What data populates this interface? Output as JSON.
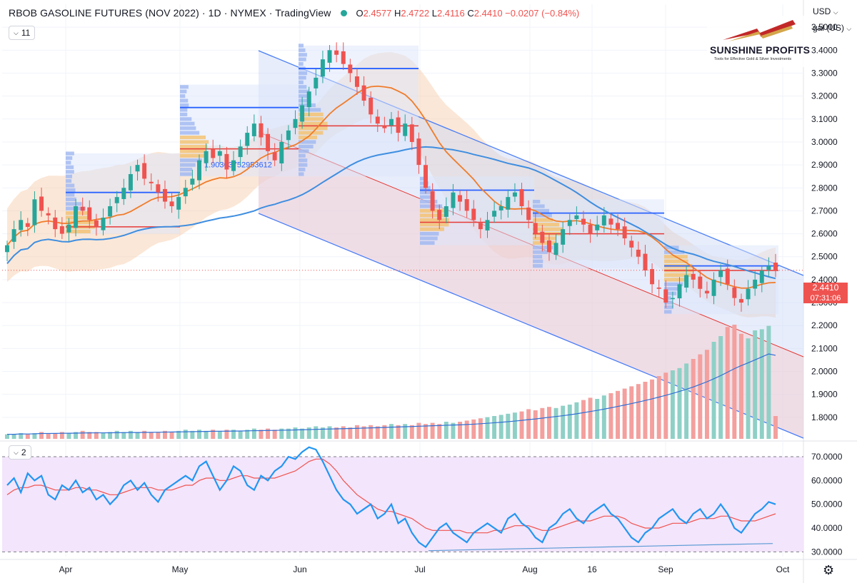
{
  "header": {
    "title": "RBOB GASOLINE FUTURES (NOV 2022) · 1D · NYMEX · TradingView",
    "ohlc": {
      "o_label": "O",
      "o": "2.4577",
      "h_label": "H",
      "h": "2.4722",
      "l_label": "L",
      "l": "2.4116",
      "c_label": "C",
      "c": "2.4410",
      "change": "−0.0207 (−0.84%)"
    }
  },
  "indicator_pills": {
    "main_count": "11",
    "sub_count": "2"
  },
  "axis_controls": {
    "currency": "USD",
    "unit": "gal (US)"
  },
  "logo": {
    "brand": "SUNSHINE PROFITS",
    "tagline": "Tools for Effective Gold & Silver Investments"
  },
  "last_price": {
    "value": "2.4410",
    "countdown": "07:31:06"
  },
  "watermark_level": "1.90303752953612",
  "colors": {
    "up": "#26a69a",
    "down": "#ef5350",
    "channel": "#4a7ef5",
    "ma_fast": "#f07c2a",
    "ma_slow": "#3f8ee0",
    "rsi": "#2196f3",
    "rsi_ma": "#ef5350",
    "rsi_bg": "#f3e5fb",
    "poc": "#e53935",
    "vah": "#2962ff"
  },
  "chart_data": {
    "type": "candlestick",
    "title": "RBOB GASOLINE FUTURES (NOV 2022)",
    "price_axis": {
      "min": 1.7,
      "max": 3.6,
      "ticks": [
        "1.8000",
        "1.9000",
        "2.0000",
        "2.1000",
        "2.2000",
        "2.3000",
        "2.4000",
        "2.5000",
        "2.6000",
        "2.7000",
        "2.8000",
        "2.9000",
        "3.0000",
        "3.1000",
        "3.2000",
        "3.3000",
        "3.4000",
        "3.5000"
      ]
    },
    "time_axis": {
      "labels": [
        "Apr",
        "May",
        "Jun",
        "Jul",
        "Aug",
        "16",
        "Sep",
        "Oct"
      ]
    },
    "series_close": [
      2.55,
      2.62,
      2.66,
      2.63,
      2.75,
      2.7,
      2.68,
      2.62,
      2.6,
      2.64,
      2.72,
      2.7,
      2.66,
      2.63,
      2.67,
      2.72,
      2.76,
      2.8,
      2.86,
      2.9,
      2.84,
      2.82,
      2.78,
      2.74,
      2.72,
      2.76,
      2.8,
      2.84,
      2.92,
      2.96,
      2.93,
      2.96,
      2.88,
      2.92,
      2.98,
      3.04,
      3.08,
      3.02,
      2.96,
      2.92,
      3.0,
      3.05,
      3.1,
      3.16,
      3.22,
      3.28,
      3.36,
      3.4,
      3.38,
      3.34,
      3.3,
      3.24,
      3.18,
      3.12,
      3.08,
      3.06,
      3.1,
      3.04,
      3.08,
      3.0,
      2.9,
      2.8,
      2.7,
      2.66,
      2.72,
      2.78,
      2.74,
      2.7,
      2.66,
      2.62,
      2.66,
      2.7,
      2.72,
      2.76,
      2.78,
      2.72,
      2.66,
      2.6,
      2.56,
      2.52,
      2.56,
      2.62,
      2.66,
      2.68,
      2.64,
      2.6,
      2.64,
      2.68,
      2.64,
      2.62,
      2.58,
      2.54,
      2.5,
      2.44,
      2.38,
      2.36,
      2.3,
      2.32,
      2.38,
      2.42,
      2.4,
      2.36,
      2.34,
      2.4,
      2.44,
      2.38,
      2.32,
      2.3,
      2.36,
      2.4,
      2.44,
      2.46,
      2.44
    ],
    "volume_relative": [
      0.04,
      0.04,
      0.05,
      0.04,
      0.05,
      0.06,
      0.05,
      0.05,
      0.06,
      0.05,
      0.06,
      0.07,
      0.06,
      0.06,
      0.05,
      0.06,
      0.07,
      0.06,
      0.07,
      0.06,
      0.07,
      0.06,
      0.06,
      0.07,
      0.06,
      0.07,
      0.08,
      0.07,
      0.08,
      0.07,
      0.08,
      0.07,
      0.08,
      0.08,
      0.07,
      0.08,
      0.09,
      0.08,
      0.09,
      0.08,
      0.09,
      0.09,
      0.1,
      0.09,
      0.1,
      0.11,
      0.1,
      0.11,
      0.1,
      0.11,
      0.1,
      0.12,
      0.11,
      0.12,
      0.11,
      0.12,
      0.13,
      0.12,
      0.13,
      0.12,
      0.14,
      0.13,
      0.14,
      0.13,
      0.15,
      0.14,
      0.15,
      0.16,
      0.17,
      0.18,
      0.19,
      0.2,
      0.21,
      0.22,
      0.23,
      0.24,
      0.26,
      0.25,
      0.27,
      0.28,
      0.27,
      0.29,
      0.3,
      0.32,
      0.34,
      0.36,
      0.35,
      0.38,
      0.4,
      0.42,
      0.44,
      0.46,
      0.48,
      0.5,
      0.52,
      0.55,
      0.58,
      0.6,
      0.62,
      0.66,
      0.7,
      0.74,
      0.78,
      0.85,
      0.9,
      0.98,
      1.0,
      0.92,
      0.88,
      0.95,
      0.96,
      0.99,
      0.2
    ],
    "rsi_axis": {
      "min": 28,
      "max": 76,
      "ticks": [
        "30.0000",
        "40.0000",
        "50.0000",
        "60.0000",
        "70.0000"
      ],
      "overbought": 70,
      "oversold": 30
    },
    "rsi": [
      58,
      61,
      55,
      63,
      60,
      62,
      54,
      52,
      58,
      56,
      60,
      55,
      57,
      52,
      54,
      50,
      53,
      58,
      60,
      56,
      59,
      54,
      51,
      56,
      58,
      60,
      62,
      60,
      66,
      68,
      62,
      56,
      60,
      66,
      64,
      58,
      56,
      62,
      60,
      64,
      66,
      70,
      69,
      72,
      74,
      73,
      68,
      62,
      56,
      52,
      50,
      46,
      48,
      50,
      44,
      46,
      50,
      42,
      44,
      38,
      34,
      32,
      36,
      40,
      42,
      38,
      36,
      34,
      38,
      40,
      42,
      40,
      38,
      44,
      46,
      42,
      40,
      36,
      34,
      40,
      42,
      46,
      48,
      44,
      42,
      46,
      48,
      50,
      46,
      44,
      40,
      36,
      34,
      38,
      40,
      44,
      46,
      48,
      44,
      42,
      46,
      48,
      44,
      46,
      50,
      46,
      40,
      38,
      42,
      46,
      48,
      51,
      50
    ],
    "rsi_ma": [
      54,
      56,
      57,
      57,
      58,
      58,
      57,
      56,
      56,
      56,
      57,
      57,
      56,
      56,
      55,
      54,
      54,
      55,
      56,
      57,
      57,
      57,
      56,
      56,
      56,
      57,
      58,
      58,
      60,
      61,
      61,
      60,
      60,
      61,
      62,
      62,
      61,
      61,
      61,
      61,
      62,
      63,
      64,
      66,
      68,
      69,
      69,
      67,
      64,
      60,
      57,
      54,
      52,
      50,
      48,
      47,
      47,
      46,
      45,
      44,
      42,
      40,
      39,
      39,
      39,
      39,
      39,
      38,
      38,
      38,
      38,
      39,
      39,
      40,
      41,
      41,
      41,
      40,
      39,
      39,
      40,
      41,
      42,
      43,
      43,
      43,
      44,
      45,
      45,
      45,
      44,
      42,
      41,
      40,
      40,
      40,
      41,
      42,
      42,
      42,
      43,
      44,
      44,
      44,
      45,
      45,
      44,
      43,
      43,
      43,
      44,
      45,
      46
    ]
  }
}
